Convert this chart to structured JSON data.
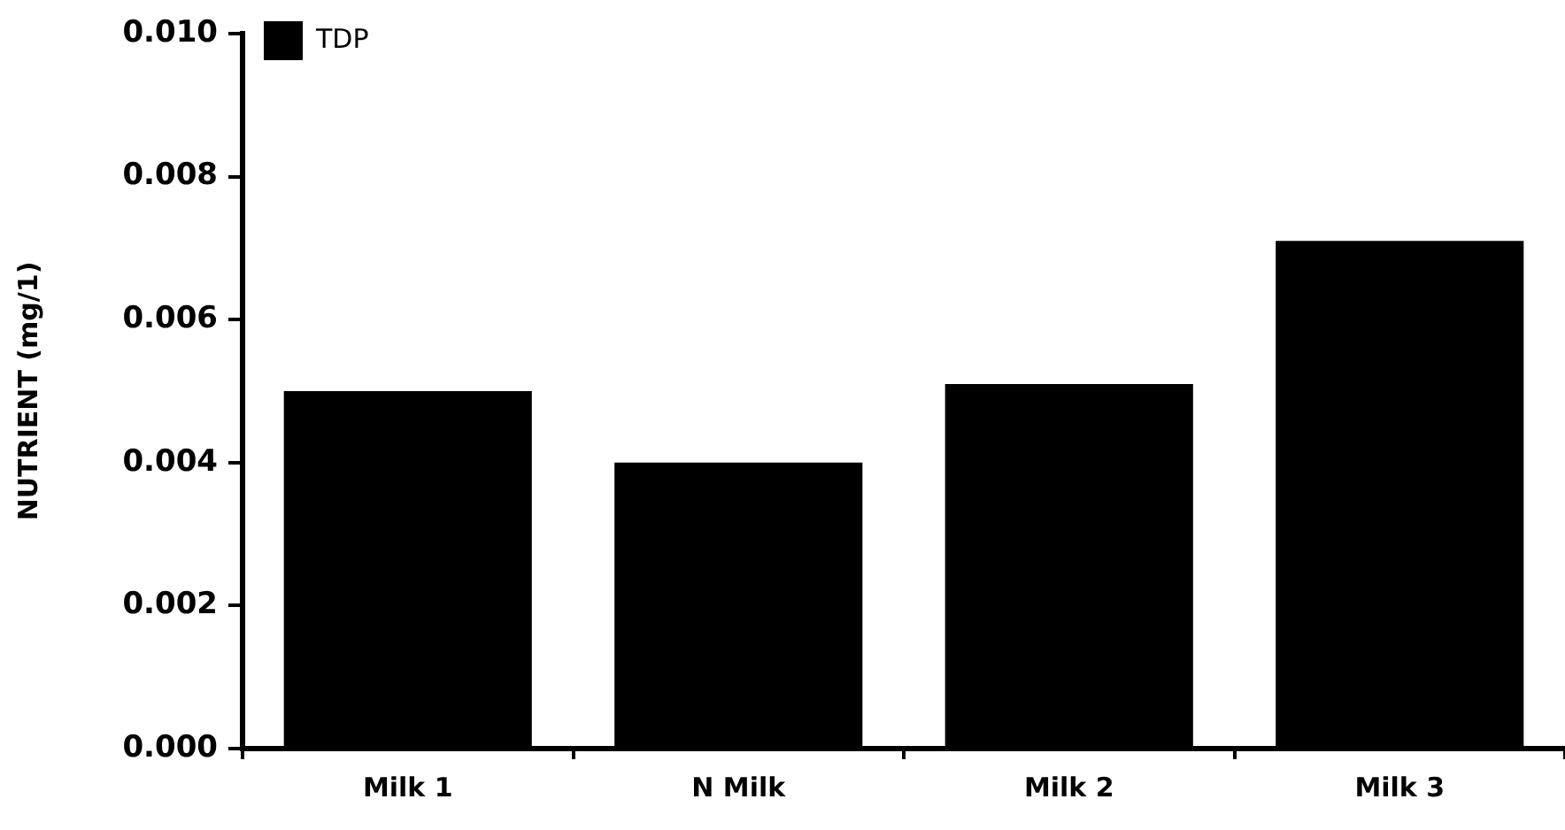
{
  "chart_data": {
    "type": "bar",
    "ylabel": "NUTRIENT (mg/1)",
    "categories": [
      "Milk 1",
      "N Milk",
      "Milk 2",
      "Milk 3"
    ],
    "series": [
      {
        "name": "TDP",
        "color": "#000000",
        "values": [
          0.005,
          0.004,
          0.0051,
          0.0071
        ]
      }
    ],
    "ylim": [
      0,
      0.01
    ],
    "yticks": [
      {
        "value": 0,
        "label": "0.000"
      },
      0.002,
      0.004,
      0.006,
      0.008,
      {
        "value": 0.01,
        "label": "0.010"
      }
    ],
    "grid": false,
    "legend": "top left"
  }
}
